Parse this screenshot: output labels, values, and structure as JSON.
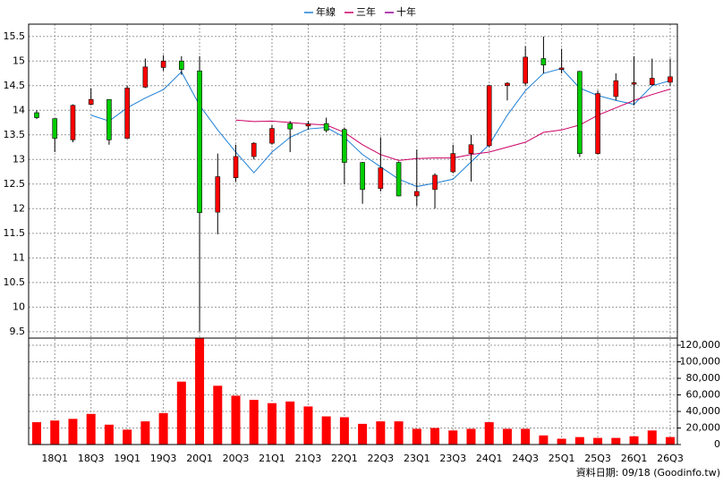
{
  "chart_data": {
    "type": "candlestick",
    "categories": [
      null,
      "18Q1",
      null,
      "18Q3",
      null,
      "19Q1",
      null,
      "19Q3",
      null,
      "20Q1",
      null,
      "20Q3",
      null,
      "21Q1",
      null,
      "21Q3",
      null,
      "22Q1",
      null,
      "22Q3",
      null,
      "23Q1",
      null,
      "23Q3",
      null,
      "24Q1",
      null,
      "24Q3",
      null,
      "25Q1",
      null,
      "25Q3",
      null,
      "26Q1",
      null,
      "26Q3"
    ],
    "open": [
      13.95,
      13.83,
      13.4,
      14.12,
      14.22,
      13.43,
      14.47,
      14.87,
      15.0,
      14.8,
      11.93,
      12.63,
      13.06,
      13.33,
      13.73,
      13.68,
      13.73,
      13.61,
      12.94,
      12.41,
      12.94,
      12.26,
      12.39,
      12.75,
      13.12,
      13.28,
      14.5,
      14.55,
      15.05,
      14.83,
      14.79,
      13.12,
      14.28,
      14.53,
      14.52,
      14.57
    ],
    "high": [
      14.0,
      13.83,
      14.12,
      14.45,
      14.22,
      14.5,
      15.05,
      15.12,
      15.1,
      15.1,
      13.12,
      13.3,
      13.35,
      13.7,
      13.78,
      13.78,
      13.85,
      13.65,
      12.95,
      13.45,
      12.96,
      13.2,
      12.72,
      13.3,
      13.5,
      14.52,
      14.57,
      15.3,
      15.5,
      15.25,
      14.8,
      14.4,
      14.75,
      15.1,
      15.05,
      15.05
    ],
    "low": [
      13.82,
      13.15,
      13.35,
      14.1,
      13.3,
      13.42,
      14.45,
      14.8,
      14.72,
      9.5,
      11.48,
      12.55,
      13.0,
      13.3,
      13.15,
      13.6,
      13.55,
      12.5,
      12.1,
      12.35,
      12.25,
      12.05,
      12.0,
      12.72,
      12.55,
      13.25,
      14.2,
      14.5,
      14.75,
      14.75,
      13.05,
      13.1,
      14.2,
      14.1,
      14.5,
      14.5
    ],
    "close": [
      13.85,
      13.43,
      14.1,
      14.22,
      13.4,
      14.45,
      14.88,
      15.0,
      14.83,
      11.92,
      12.65,
      13.06,
      13.33,
      13.63,
      13.62,
      13.72,
      13.59,
      12.94,
      12.39,
      12.83,
      12.26,
      12.35,
      12.68,
      13.12,
      13.3,
      14.5,
      14.55,
      15.08,
      14.92,
      14.86,
      13.12,
      14.34,
      14.6,
      14.56,
      14.65,
      14.68
    ],
    "up_color": "#ff0000",
    "down_color": "#00cc00",
    "ylim": [
      9.37,
      15.75
    ],
    "yticks": [
      9.5,
      10,
      10.5,
      11,
      11.5,
      12,
      12.5,
      13,
      13.5,
      14,
      14.5,
      15,
      15.5
    ],
    "grid": true,
    "lines": [
      {
        "name": "年線",
        "color": "#1c7fd6",
        "values": [
          null,
          null,
          null,
          13.9,
          13.78,
          14.05,
          14.25,
          14.42,
          14.78,
          14.1,
          13.6,
          13.15,
          12.73,
          13.15,
          13.45,
          13.62,
          13.65,
          13.45,
          13.1,
          12.85,
          12.6,
          12.45,
          12.52,
          12.6,
          12.95,
          13.3,
          13.9,
          14.4,
          14.75,
          14.85,
          14.45,
          14.3,
          14.2,
          14.12,
          14.5,
          14.6
        ]
      },
      {
        "name": "三年",
        "color": "#cc0066",
        "values": [
          null,
          null,
          null,
          null,
          null,
          null,
          null,
          null,
          null,
          null,
          null,
          13.8,
          13.77,
          13.78,
          13.75,
          13.72,
          13.7,
          13.55,
          13.3,
          13.1,
          12.98,
          13.02,
          13.03,
          13.03,
          13.1,
          13.15,
          13.25,
          13.35,
          13.55,
          13.6,
          13.7,
          13.9,
          14.05,
          14.2,
          14.32,
          14.43
        ]
      },
      {
        "name": "十年",
        "color": "#990099",
        "values": [
          null,
          null,
          null,
          null,
          null,
          null,
          null,
          null,
          null,
          null,
          null,
          null,
          null,
          null,
          null,
          null,
          null,
          null,
          null,
          null,
          null,
          null,
          null,
          null,
          null,
          null,
          null,
          null,
          null,
          null,
          null,
          null,
          null,
          null,
          null,
          null
        ]
      }
    ],
    "volume": {
      "color": "#ff0000",
      "values": [
        27000,
        29000,
        31000,
        37000,
        24000,
        18000,
        28000,
        38000,
        76000,
        129000,
        71000,
        59000,
        54000,
        50000,
        52000,
        46000,
        34000,
        33000,
        25000,
        28000,
        28000,
        19000,
        20000,
        17000,
        19000,
        27000,
        19000,
        19000,
        11000,
        7000,
        9000,
        8000,
        8000,
        10000,
        17000,
        9000
      ],
      "ylim": [
        0,
        128600
      ],
      "yticks": [
        0,
        {
          "value": 20000,
          "label": "20,000"
        },
        {
          "value": 40000,
          "label": "40,000"
        },
        {
          "value": 60000,
          "label": "60,000"
        },
        {
          "value": 80000,
          "label": "80,000"
        },
        {
          "value": 100000,
          "label": "100,000"
        },
        {
          "value": 120000,
          "label": "120,000"
        }
      ]
    },
    "source": "資料日期: 09/18 (Goodinfo.tw)"
  }
}
